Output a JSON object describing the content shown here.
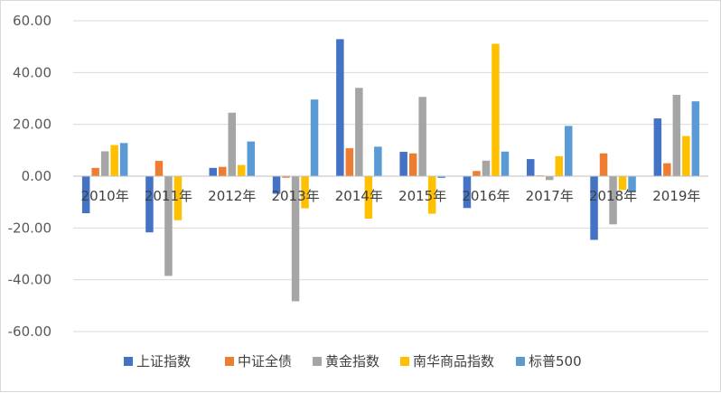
{
  "chart_data": {
    "type": "bar",
    "title": "",
    "xlabel": "",
    "ylabel": "",
    "categories": [
      "2010年",
      "2011年",
      "2012年",
      "2013年",
      "2014年",
      "2015年",
      "2016年",
      "2017年",
      "2018年",
      "2019年"
    ],
    "series": [
      {
        "name": "上证指数",
        "color": "#4472C4",
        "values": [
          -14.3,
          -21.7,
          3.2,
          -6.8,
          52.9,
          9.4,
          -12.3,
          6.6,
          -24.6,
          22.3
        ]
      },
      {
        "name": "中证全债",
        "color": "#ED7D31",
        "values": [
          3.2,
          5.9,
          3.6,
          -0.6,
          10.8,
          8.8,
          2.0,
          0.3,
          8.8,
          5.0
        ]
      },
      {
        "name": "黄金指数",
        "color": "#A5A5A5",
        "values": [
          9.6,
          -38.5,
          24.5,
          -48.3,
          34.1,
          30.6,
          6.0,
          -1.5,
          -18.6,
          31.4
        ]
      },
      {
        "name": "南华商品指数",
        "color": "#FFC000",
        "values": [
          12.0,
          -17.0,
          4.3,
          -12.4,
          -16.4,
          -14.5,
          51.1,
          7.7,
          -5.3,
          15.5
        ]
      },
      {
        "name": "标普500",
        "color": "#5B9BD5",
        "values": [
          12.8,
          0.0,
          13.4,
          29.6,
          11.4,
          -0.7,
          9.5,
          19.4,
          -6.2,
          28.9
        ]
      }
    ],
    "ylim": [
      -60,
      60
    ],
    "yticks": [
      "60.00",
      "40.00",
      "20.00",
      "0.00",
      "-20.00",
      "-40.00",
      "-60.00"
    ],
    "ytick_values": [
      60,
      40,
      20,
      0,
      -20,
      -40,
      -60
    ],
    "grid": true,
    "legend_position": "bottom"
  }
}
